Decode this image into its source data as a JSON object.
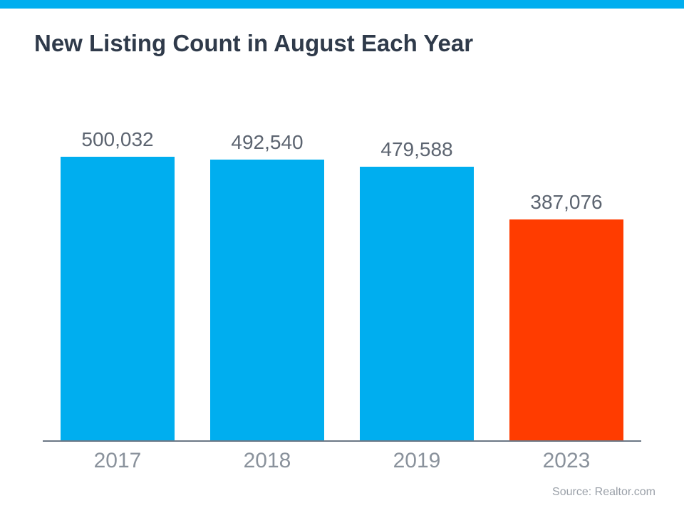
{
  "chart": {
    "type": "bar",
    "title": "New Listing Count in August Each Year",
    "title_fontsize": 33,
    "title_color": "#2f3a4a",
    "background_color": "#ffffff",
    "accent_stripe_color": "#00aeef",
    "axis_color": "#6b7785",
    "value_label_color": "#5c6470",
    "value_label_fontsize": 28,
    "x_label_color": "#8a929c",
    "x_label_fontsize": 30,
    "source_text": "Source: Realtor.com",
    "source_color": "#9aa0a8",
    "source_fontsize": 16,
    "y_max": 500032,
    "bar_width_pct": 76,
    "bars": [
      {
        "category": "2017",
        "value": 500032,
        "value_label": "500,032",
        "color": "#00aeef"
      },
      {
        "category": "2018",
        "value": 492540,
        "value_label": "492,540",
        "color": "#00aeef"
      },
      {
        "category": "2019",
        "value": 479588,
        "value_label": "479,588",
        "color": "#00aeef"
      },
      {
        "category": "2023",
        "value": 387076,
        "value_label": "387,076",
        "color": "#ff3c00"
      }
    ]
  }
}
